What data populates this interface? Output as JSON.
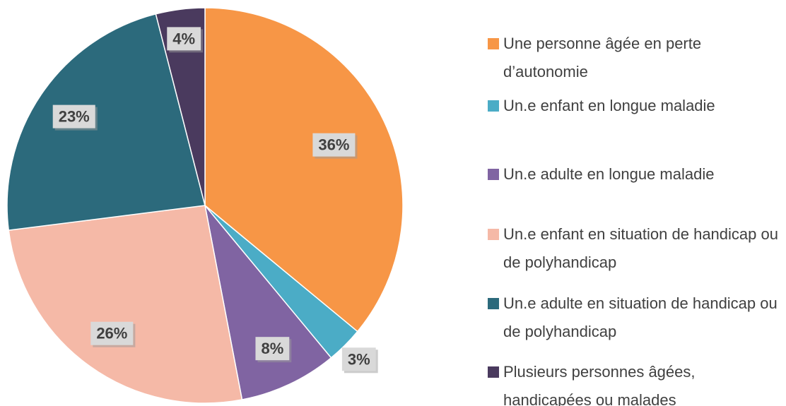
{
  "chart_data": {
    "type": "pie",
    "categories": [
      "Une personne âgée en perte d’autonomie",
      "Un.e enfant en longue maladie",
      "Un.e adulte en longue maladie",
      "Un.e enfant en situation de handicap ou de polyhandicap",
      "Un.e adulte en situation de handicap ou de polyhandicap",
      "Plusieurs personnes âgées, handicapées ou malades"
    ],
    "values": [
      36,
      3,
      8,
      26,
      23,
      4
    ],
    "value_labels": [
      "36%",
      "3%",
      "8%",
      "26%",
      "23%",
      "4%"
    ],
    "colors": [
      "#f79646",
      "#4bacc6",
      "#8064a2",
      "#f5b9a7",
      "#2c6a7c",
      "#4a3a5e"
    ]
  }
}
